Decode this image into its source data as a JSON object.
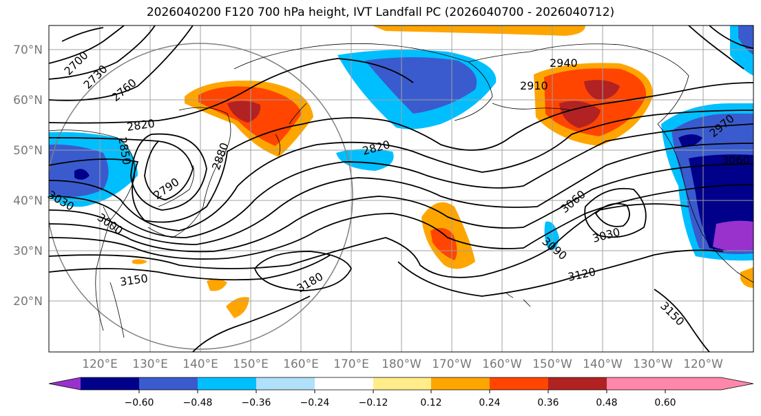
{
  "title": "2026040200 F120 700 hPa height, IVT Landfall PC (2026040700 - 2026040712)",
  "lat_labels": [
    "70°N",
    "60°N",
    "50°N",
    "40°N",
    "30°N",
    "20°N"
  ],
  "lon_labels": [
    "120°E",
    "130°E",
    "140°E",
    "150°E",
    "160°E",
    "170°E",
    "180°W",
    "170°W",
    "160°W",
    "150°W",
    "140°W",
    "130°W",
    "120°W"
  ],
  "contour_labels": [
    "2700",
    "2730",
    "2760",
    "2790",
    "2820",
    "2820",
    "2850",
    "2880",
    "2910",
    "2940",
    "2970",
    "3000",
    "3030",
    "3030",
    "3060",
    "3060",
    "3090",
    "3120",
    "3150",
    "3150",
    "3180"
  ],
  "colorbar": {
    "ticks": [
      "−0.60",
      "−0.48",
      "−0.36",
      "−0.24",
      "−0.12",
      "0.12",
      "0.24",
      "0.36",
      "0.48",
      "0.60"
    ],
    "colors": [
      "#9932cc",
      "#00008b",
      "#3a5bcd",
      "#00bfff",
      "#b0e0fa",
      "#ffffff",
      "#ffec8b",
      "#ffa500",
      "#ff4500",
      "#b22222",
      "#ff88aa"
    ]
  },
  "colors": {
    "frame": "#000000",
    "grid": "#a0a0a0",
    "label": "#777777"
  }
}
